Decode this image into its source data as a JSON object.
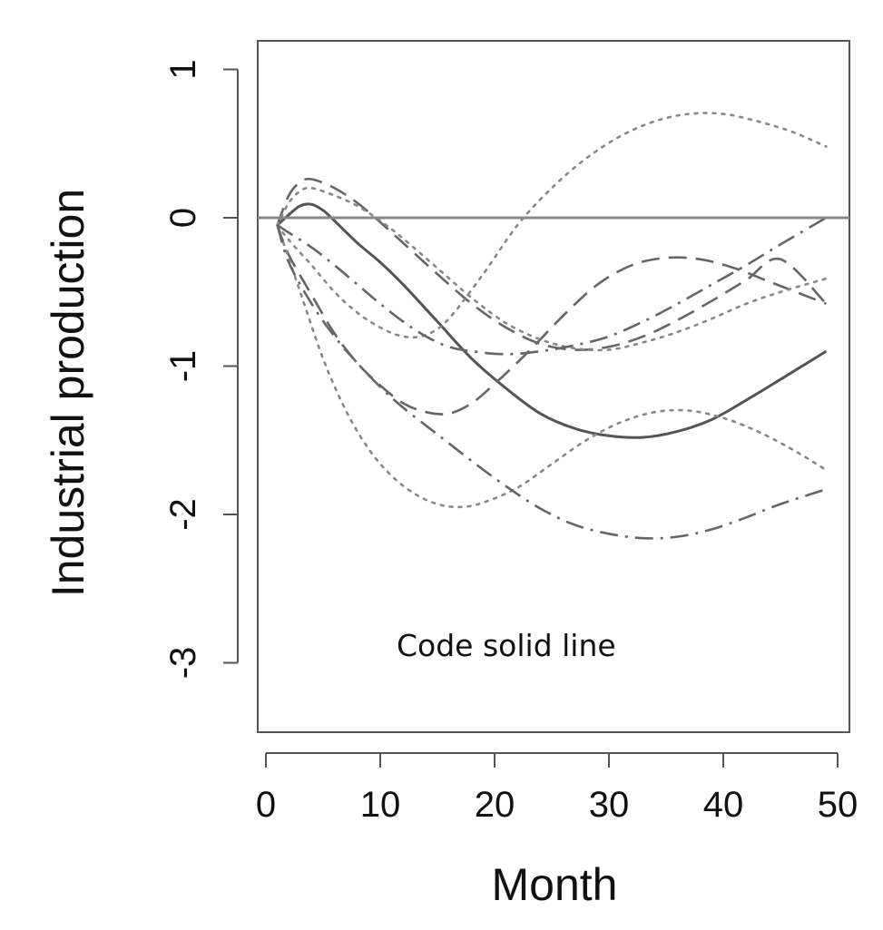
{
  "chart_data": {
    "type": "line",
    "xlabel": "Month",
    "ylabel": "Industrial production",
    "xlim": [
      0,
      50
    ],
    "ylim": [
      -3.5,
      1.2
    ],
    "x_ticks": [
      0,
      10,
      20,
      30,
      40,
      50
    ],
    "y_ticks": [
      1,
      0,
      -1,
      -2,
      -3
    ],
    "reference_line_y": 0,
    "annotation": "Code solid line",
    "grid": false,
    "series": [
      {
        "style": "solid",
        "color": "#555555",
        "x": [
          1,
          2,
          3,
          4,
          5,
          6,
          8,
          10,
          12,
          15,
          18,
          21,
          24,
          27,
          30,
          33,
          36,
          39,
          42,
          45,
          49
        ],
        "y": [
          -0.05,
          0.02,
          0.08,
          0.09,
          0.05,
          -0.02,
          -0.17,
          -0.3,
          -0.45,
          -0.7,
          -0.95,
          -1.15,
          -1.32,
          -1.42,
          -1.47,
          -1.48,
          -1.44,
          -1.36,
          -1.23,
          -1.09,
          -0.9
        ]
      },
      {
        "style": "dashed",
        "color": "#666666",
        "x": [
          1,
          2,
          3,
          4,
          6,
          8,
          10,
          12,
          15,
          18,
          21,
          24,
          27,
          30,
          33,
          36,
          39,
          42,
          45,
          49
        ],
        "y": [
          -0.05,
          0.15,
          0.24,
          0.26,
          0.2,
          0.1,
          -0.03,
          -0.17,
          -0.38,
          -0.58,
          -0.74,
          -0.85,
          -0.89,
          -0.87,
          -0.8,
          -0.69,
          -0.56,
          -0.42,
          -0.28,
          -0.58
        ]
      },
      {
        "style": "dashed",
        "color": "#666666",
        "x": [
          1,
          2,
          4,
          6,
          8,
          10,
          12,
          14,
          16,
          18,
          20,
          23,
          26,
          29,
          32,
          35,
          38,
          41,
          44,
          49
        ],
        "y": [
          -0.05,
          -0.25,
          -0.52,
          -0.78,
          -0.98,
          -1.13,
          -1.25,
          -1.31,
          -1.32,
          -1.25,
          -1.12,
          -0.9,
          -0.66,
          -0.45,
          -0.32,
          -0.27,
          -0.28,
          -0.34,
          -0.43,
          -0.58
        ]
      },
      {
        "style": "dotted",
        "color": "#888888",
        "x": [
          1,
          2,
          4,
          6,
          8,
          10,
          12,
          14,
          16,
          19,
          22,
          25,
          28,
          31,
          34,
          37,
          40,
          43,
          46,
          49
        ],
        "y": [
          -0.05,
          -0.15,
          -0.32,
          -0.5,
          -0.64,
          -0.74,
          -0.8,
          -0.79,
          -0.68,
          -0.38,
          -0.05,
          0.2,
          0.4,
          0.55,
          0.65,
          0.7,
          0.7,
          0.65,
          0.58,
          0.48
        ]
      },
      {
        "style": "dotted",
        "color": "#888888",
        "x": [
          1,
          3,
          5,
          7,
          9,
          11,
          13,
          15,
          17,
          19,
          22,
          25,
          28,
          31,
          34,
          37,
          40,
          43,
          46,
          49
        ],
        "y": [
          -0.05,
          -0.5,
          -0.95,
          -1.3,
          -1.56,
          -1.74,
          -1.86,
          -1.93,
          -1.95,
          -1.92,
          -1.82,
          -1.66,
          -1.5,
          -1.38,
          -1.31,
          -1.3,
          -1.35,
          -1.44,
          -1.56,
          -1.7
        ]
      },
      {
        "style": "dotted",
        "color": "#888888",
        "x": [
          1,
          2,
          3,
          4,
          6,
          8,
          10,
          12,
          15,
          18,
          21,
          24,
          27,
          30,
          33,
          36,
          39,
          42,
          45,
          49
        ],
        "y": [
          -0.05,
          0.1,
          0.18,
          0.2,
          0.15,
          0.08,
          -0.02,
          -0.14,
          -0.34,
          -0.54,
          -0.71,
          -0.82,
          -0.88,
          -0.89,
          -0.84,
          -0.77,
          -0.68,
          -0.58,
          -0.5,
          -0.41
        ]
      },
      {
        "style": "dashdot",
        "color": "#666666",
        "x": [
          1,
          2,
          4,
          6,
          8,
          10,
          12,
          15,
          18,
          21,
          24,
          27,
          30,
          33,
          36,
          39,
          42,
          45,
          49
        ],
        "y": [
          -0.05,
          -0.3,
          -0.58,
          -0.8,
          -0.98,
          -1.14,
          -1.28,
          -1.46,
          -1.64,
          -1.81,
          -1.96,
          -2.07,
          -2.13,
          -2.16,
          -2.15,
          -2.1,
          -2.02,
          -1.93,
          -1.83
        ]
      },
      {
        "style": "dashdot",
        "color": "#666666",
        "x": [
          1,
          2,
          4,
          6,
          8,
          10,
          12,
          14,
          16,
          18,
          21,
          24,
          27,
          30,
          33,
          36,
          39,
          42,
          45,
          49
        ],
        "y": [
          -0.05,
          -0.1,
          -0.2,
          -0.32,
          -0.45,
          -0.58,
          -0.7,
          -0.8,
          -0.87,
          -0.9,
          -0.92,
          -0.9,
          -0.86,
          -0.8,
          -0.7,
          -0.58,
          -0.45,
          -0.32,
          -0.18,
          0.0
        ]
      }
    ]
  }
}
